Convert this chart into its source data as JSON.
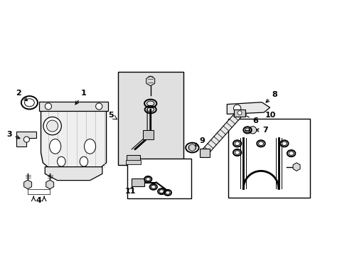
{
  "background_color": "#ffffff",
  "line_color": "#000000",
  "part_color": "#d0d0d0",
  "box_fill": "#e0e0e0",
  "figsize": [
    4.89,
    3.6
  ],
  "dpi": 100,
  "xlim": [
    0,
    8.5
  ],
  "ylim": [
    0,
    6.0
  ]
}
